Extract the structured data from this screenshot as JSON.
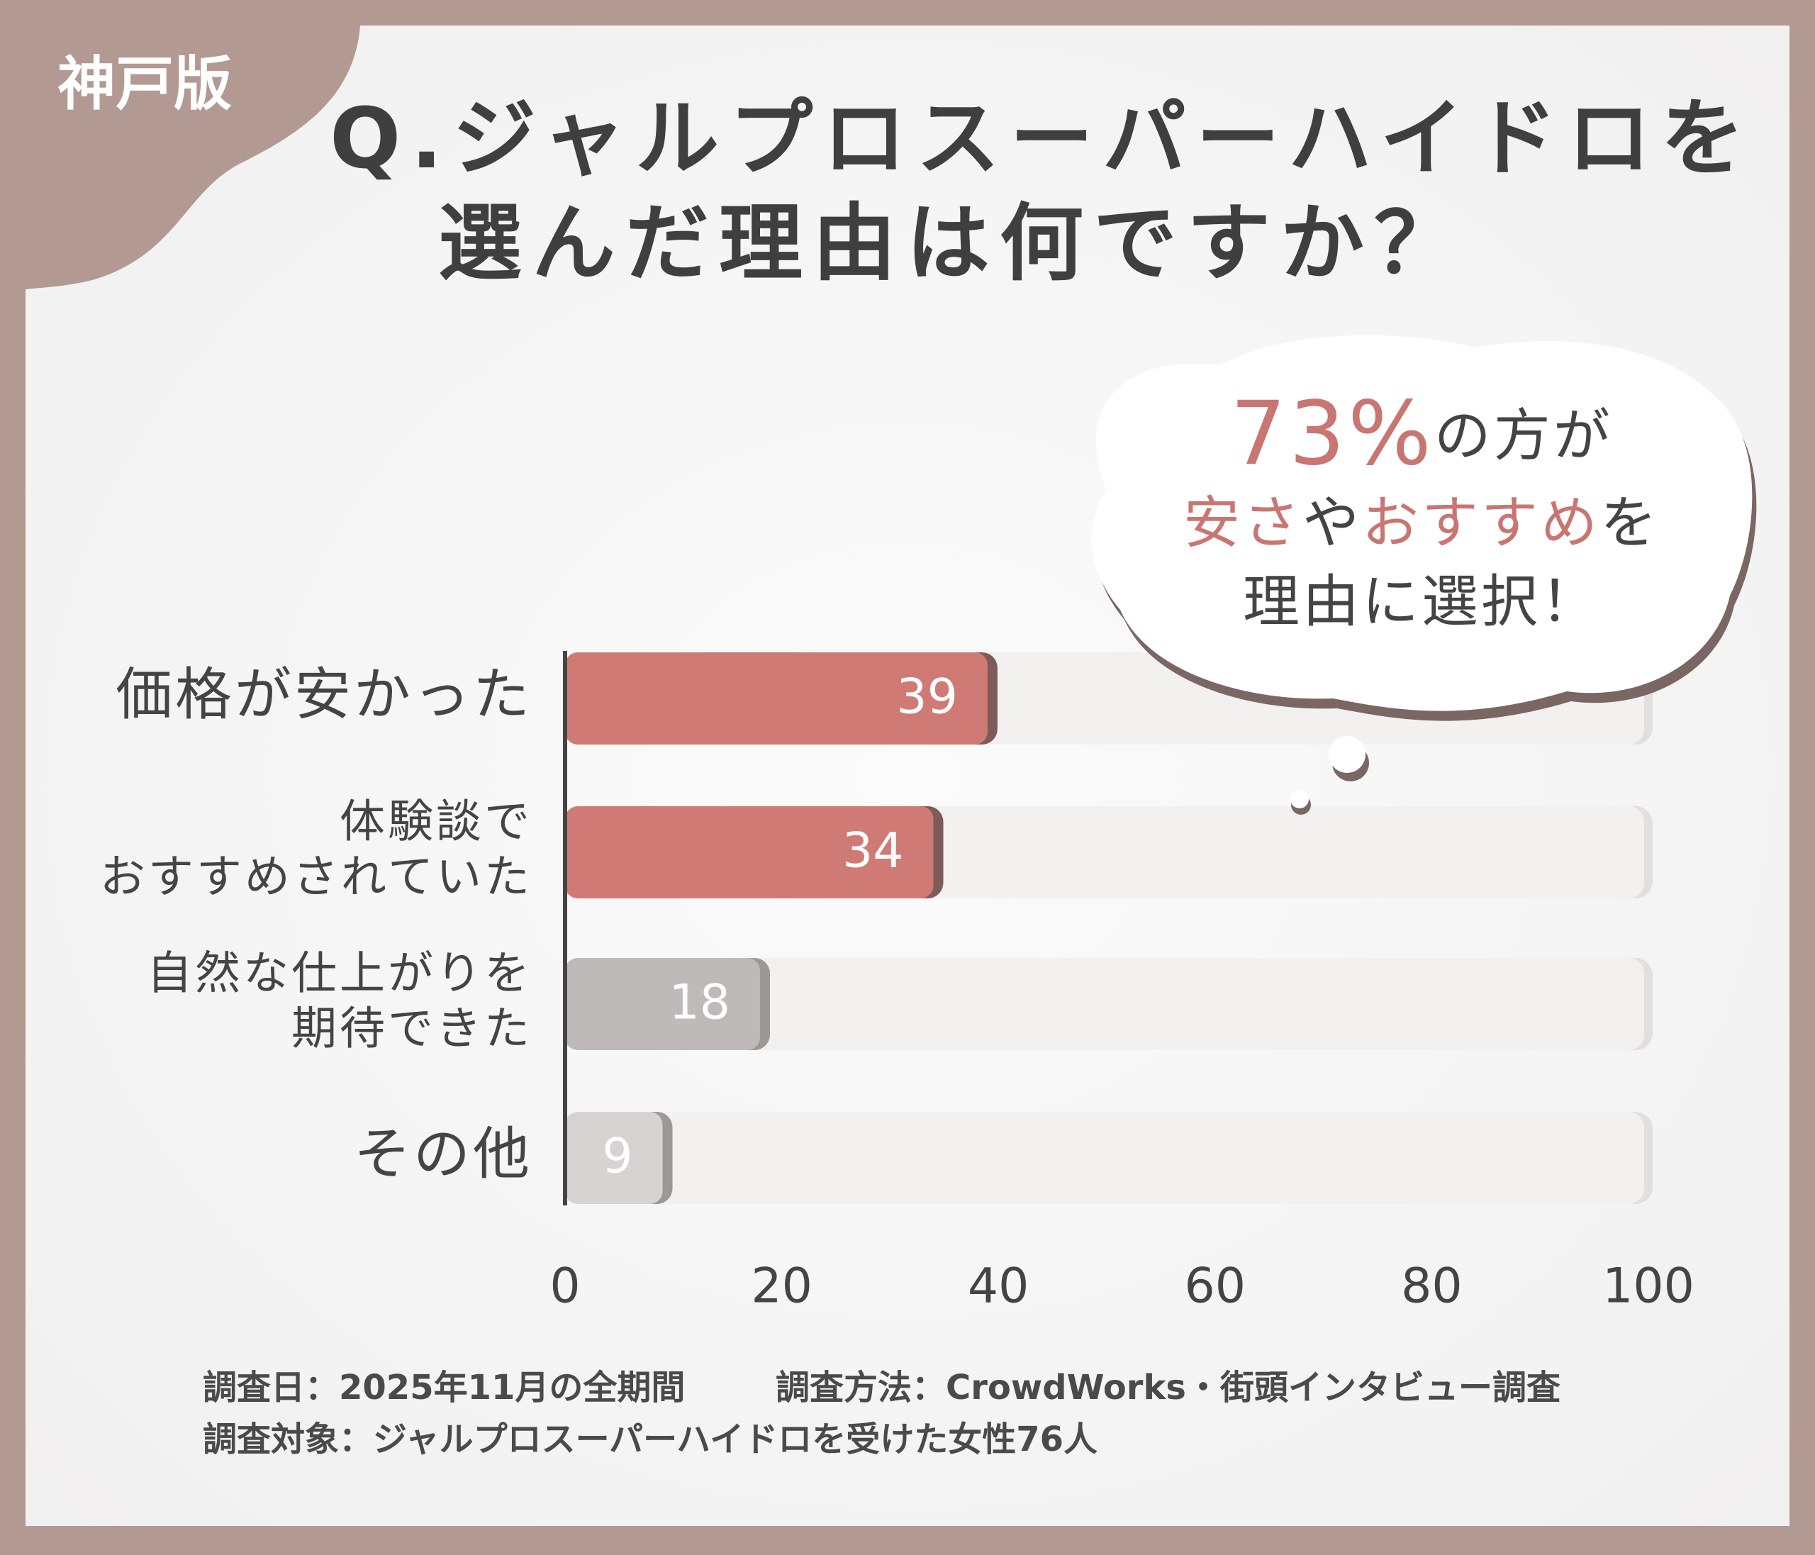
{
  "chart_data": {
    "type": "bar",
    "orientation": "horizontal",
    "badge": "神戸版",
    "title": [
      "Q.ジャルプロスーパーハイドロを",
      "選んだ理由は何ですか？"
    ],
    "categories": [
      [
        "価格が安かった"
      ],
      [
        "体験談で",
        "おすすめされていた"
      ],
      [
        "自然な仕上がりを",
        "期待できた"
      ],
      [
        "その他"
      ]
    ],
    "values": [
      39,
      34,
      18,
      9
    ],
    "colors": [
      "#d07a76",
      "#d07a76",
      "#bebab9",
      "#d6d3d2"
    ],
    "xlim": [
      0,
      100
    ],
    "xticks": [
      0,
      20,
      40,
      60,
      80,
      100
    ],
    "annotation": [
      [
        {
          "text": "73%",
          "color": "#c97572"
        },
        {
          "text": "の方が",
          "color": "#444444"
        }
      ],
      [
        {
          "text": "安さ",
          "color": "#c97572"
        },
        {
          "text": "や",
          "color": "#444444"
        },
        {
          "text": "おすすめ",
          "color": "#c97572"
        },
        {
          "text": "を",
          "color": "#444444"
        }
      ],
      [
        {
          "text": "理由に選択！",
          "color": "#444444"
        }
      ]
    ],
    "notes": [
      [
        "調査日：2025年11月の全期間",
        "調査方法：CrowdWorks・街頭インタビュー調査"
      ],
      [
        "調査対象：ジャルプロスーパーハイドロを受けた女性76人"
      ]
    ]
  }
}
